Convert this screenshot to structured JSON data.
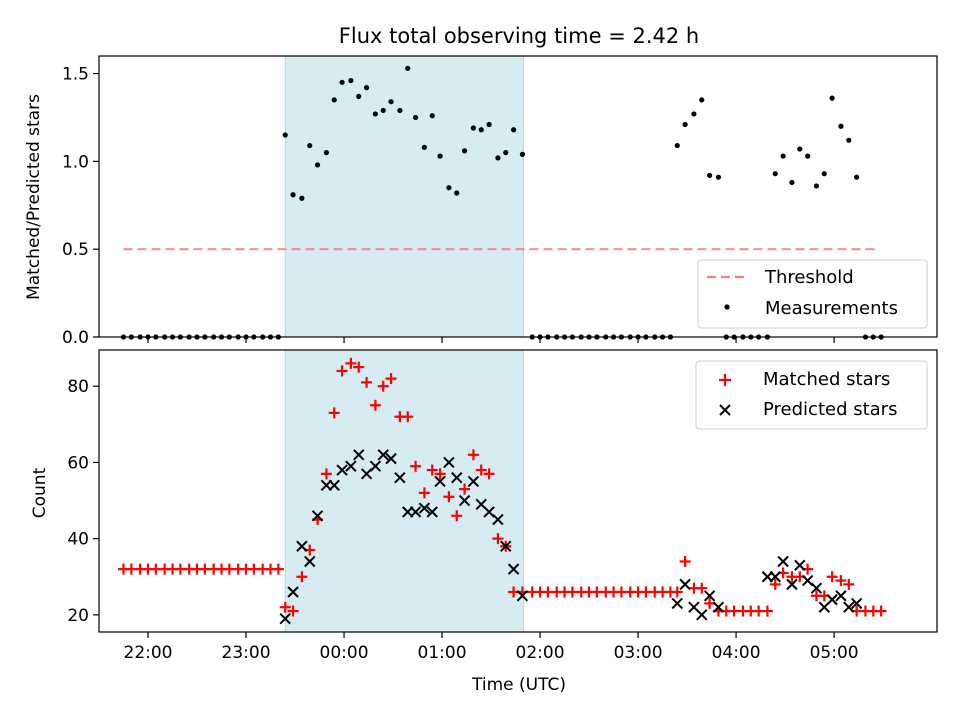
{
  "chart_data": [
    {
      "type": "scatter",
      "panel": "top",
      "title": "Flux total observing time = 2.42 h",
      "ylabel": "Matched/Predicted stars",
      "xlabel": "",
      "ylim": [
        0,
        1.6
      ],
      "yticks": [
        0.0,
        0.5,
        1.0,
        1.5
      ],
      "ytick_labels": [
        "0.0",
        "0.5",
        "1.0",
        "1.5"
      ],
      "xlim_hours": [
        21.5,
        30.05
      ],
      "xticks_hours": [
        22,
        23,
        24,
        25,
        26,
        27,
        28,
        29
      ],
      "highlight_span_hours": [
        23.4,
        25.83
      ],
      "threshold": {
        "name": "Threshold",
        "value": 0.5,
        "x_range_hours": [
          21.75,
          29.45
        ],
        "color": "#f08080"
      },
      "legend": {
        "position": "lower-right",
        "entries": [
          "Threshold",
          "Measurements"
        ]
      },
      "series": [
        {
          "name": "Measurements",
          "color": "#000000",
          "marker": "dot",
          "x_hours": [
            21.75,
            21.83,
            21.92,
            22.0,
            22.08,
            22.17,
            22.25,
            22.33,
            22.42,
            22.5,
            22.58,
            22.67,
            22.75,
            22.83,
            22.92,
            23.0,
            23.08,
            23.17,
            23.25,
            23.33,
            23.4,
            23.48,
            23.57,
            23.65,
            23.73,
            23.82,
            23.9,
            23.98,
            24.07,
            24.15,
            24.23,
            24.32,
            24.4,
            24.48,
            24.57,
            24.65,
            24.73,
            24.82,
            24.9,
            24.98,
            25.07,
            25.15,
            25.23,
            25.32,
            25.4,
            25.48,
            25.57,
            25.65,
            25.73,
            25.82,
            25.92,
            26.0,
            26.08,
            26.17,
            26.25,
            26.33,
            26.42,
            26.5,
            26.58,
            26.67,
            26.75,
            26.83,
            26.92,
            27.0,
            27.08,
            27.17,
            27.25,
            27.33,
            27.4,
            27.48,
            27.57,
            27.65,
            27.73,
            27.82,
            27.9,
            27.98,
            28.07,
            28.15,
            28.23,
            28.32,
            28.4,
            28.48,
            28.57,
            28.65,
            28.73,
            28.82,
            28.9,
            28.98,
            29.07,
            29.15,
            29.23,
            29.32,
            29.4,
            29.48
          ],
          "y": [
            0,
            0,
            0,
            0,
            0,
            0,
            0,
            0,
            0,
            0,
            0,
            0,
            0,
            0,
            0,
            0,
            0,
            0,
            0,
            0,
            1.15,
            0.81,
            0.79,
            1.09,
            0.98,
            1.05,
            1.35,
            1.45,
            1.46,
            1.37,
            1.42,
            1.27,
            1.29,
            1.34,
            1.29,
            1.53,
            1.25,
            1.08,
            1.26,
            1.03,
            0.85,
            0.82,
            1.06,
            1.19,
            1.18,
            1.21,
            1.02,
            1.05,
            1.18,
            1.04,
            0,
            0,
            0,
            0,
            0,
            0,
            0,
            0,
            0,
            0,
            0,
            0,
            0,
            0,
            0,
            0,
            0,
            0,
            1.09,
            1.21,
            1.27,
            1.35,
            0.92,
            0.91,
            0,
            0,
            0,
            0,
            0,
            0,
            0.93,
            1.03,
            0.88,
            1.07,
            1.03,
            0.86,
            0.93,
            1.36,
            1.2,
            1.12,
            0.91,
            0,
            0,
            0
          ]
        }
      ]
    },
    {
      "type": "scatter",
      "panel": "bottom",
      "ylabel": "Count",
      "xlabel": "Time (UTC)",
      "ylim": [
        15.5,
        89.5
      ],
      "yticks": [
        20,
        40,
        60,
        80
      ],
      "ytick_labels": [
        "20",
        "40",
        "60",
        "80"
      ],
      "xlim_hours": [
        21.5,
        30.05
      ],
      "xticks_hours": [
        22,
        23,
        24,
        25,
        26,
        27,
        28,
        29
      ],
      "xtick_labels": [
        "22:00",
        "23:00",
        "00:00",
        "01:00",
        "02:00",
        "03:00",
        "04:00",
        "05:00"
      ],
      "highlight_span_hours": [
        23.4,
        25.83
      ],
      "legend": {
        "position": "top-right",
        "entries": [
          "Matched stars",
          "Predicted stars"
        ]
      },
      "series": [
        {
          "name": "Matched stars",
          "color": "#ff0000",
          "marker": "plus",
          "x_hours": [
            21.75,
            21.83,
            21.92,
            22.0,
            22.08,
            22.17,
            22.25,
            22.33,
            22.42,
            22.5,
            22.58,
            22.67,
            22.75,
            22.83,
            22.92,
            23.0,
            23.08,
            23.17,
            23.25,
            23.33,
            23.4,
            23.48,
            23.57,
            23.65,
            23.73,
            23.82,
            23.9,
            23.98,
            24.07,
            24.15,
            24.23,
            24.32,
            24.4,
            24.48,
            24.57,
            24.65,
            24.73,
            24.82,
            24.9,
            24.98,
            25.07,
            25.15,
            25.23,
            25.32,
            25.4,
            25.48,
            25.57,
            25.65,
            25.73,
            25.82,
            25.92,
            26.0,
            26.08,
            26.17,
            26.25,
            26.33,
            26.42,
            26.5,
            26.58,
            26.67,
            26.75,
            26.83,
            26.92,
            27.0,
            27.08,
            27.17,
            27.25,
            27.33,
            27.4,
            27.48,
            27.57,
            27.65,
            27.73,
            27.82,
            27.9,
            27.98,
            28.07,
            28.15,
            28.23,
            28.32,
            28.4,
            28.48,
            28.57,
            28.65,
            28.73,
            28.82,
            28.9,
            28.98,
            29.07,
            29.15,
            29.23,
            29.32,
            29.4,
            29.48
          ],
          "y": [
            32,
            32,
            32,
            32,
            32,
            32,
            32,
            32,
            32,
            32,
            32,
            32,
            32,
            32,
            32,
            32,
            32,
            32,
            32,
            32,
            22,
            21,
            30,
            37,
            45,
            57,
            73,
            84,
            86,
            85,
            81,
            75,
            80,
            82,
            72,
            72,
            59,
            52,
            58,
            57,
            51,
            46,
            53,
            62,
            58,
            57,
            40,
            38,
            26,
            26,
            26,
            26,
            26,
            26,
            26,
            26,
            26,
            26,
            26,
            26,
            26,
            26,
            26,
            26,
            26,
            26,
            26,
            26,
            26,
            34,
            27,
            27,
            23,
            21,
            21,
            21,
            21,
            21,
            21,
            21,
            28,
            31,
            30,
            30,
            32,
            25,
            25,
            30,
            29,
            28,
            21,
            21,
            21,
            21
          ]
        },
        {
          "name": "Predicted stars",
          "color": "#000000",
          "marker": "x",
          "x_hours": [
            23.4,
            23.48,
            23.57,
            23.65,
            23.73,
            23.82,
            23.9,
            23.98,
            24.07,
            24.15,
            24.23,
            24.32,
            24.4,
            24.48,
            24.57,
            24.65,
            24.73,
            24.82,
            24.9,
            24.98,
            25.07,
            25.15,
            25.23,
            25.32,
            25.4,
            25.48,
            25.57,
            25.65,
            25.73,
            25.82,
            27.4,
            27.48,
            27.57,
            27.65,
            27.73,
            27.82,
            28.32,
            28.4,
            28.48,
            28.57,
            28.65,
            28.73,
            28.82,
            28.9,
            28.98,
            29.07,
            29.15,
            29.23
          ],
          "y": [
            19,
            26,
            38,
            34,
            46,
            54,
            54,
            58,
            59,
            62,
            57,
            59,
            62,
            61,
            56,
            47,
            47,
            48,
            47,
            55,
            60,
            56,
            50,
            55,
            49,
            47,
            45,
            38,
            32,
            25,
            23,
            28,
            22,
            20,
            25,
            22,
            30,
            30,
            34,
            28,
            33,
            29,
            27,
            22,
            24,
            25,
            22,
            23
          ]
        }
      ]
    }
  ]
}
